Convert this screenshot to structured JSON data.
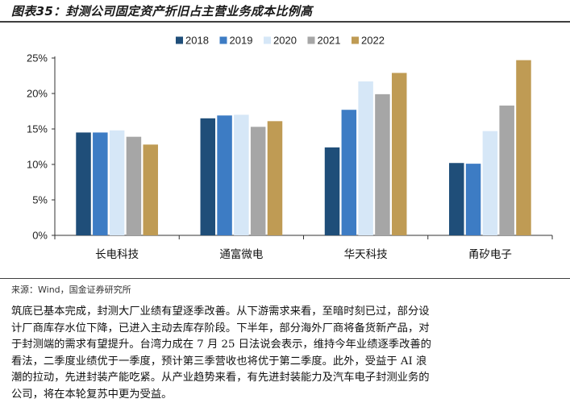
{
  "figure": {
    "title": "图表35：封测公司固定资产折旧占主营业务成本比例高",
    "source": "来源：Wind，国金证券研究所"
  },
  "chart_data": {
    "type": "bar",
    "categories": [
      "长电科技",
      "通富微电",
      "华天科技",
      "甬矽电子"
    ],
    "series": [
      {
        "name": "2018",
        "color": "#1f4e79",
        "values": [
          14.5,
          16.5,
          12.4,
          10.2
        ]
      },
      {
        "name": "2019",
        "color": "#3d7cc4",
        "values": [
          14.5,
          16.9,
          17.7,
          10.1
        ]
      },
      {
        "name": "2020",
        "color": "#d6e7f7",
        "values": [
          14.8,
          17.0,
          21.7,
          14.7
        ]
      },
      {
        "name": "2021",
        "color": "#a6a6a6",
        "values": [
          13.9,
          15.3,
          19.9,
          18.3
        ]
      },
      {
        "name": "2022",
        "color": "#bf9b54",
        "values": [
          12.8,
          16.1,
          22.9,
          24.7
        ]
      }
    ],
    "y_ticks": [
      "0%",
      "5%",
      "10%",
      "15%",
      "20%",
      "25%"
    ],
    "ylim": [
      0,
      25
    ],
    "unit": "%",
    "grid": false,
    "legend_position": "top-right"
  },
  "body_text": [
    "筑底已基本完成，封测大厂业绩有望逐季改善。从下游需求来看，至暗时刻已过，部分设",
    "计厂商库存水位下降，已进入主动去库存阶段。下半年，部分海外厂商将备货新产品，对",
    "于封测端的需求有望提升。台湾力成在 7 月 25 日法说会表示，维持今年业绩逐季改善的",
    "看法，二季度业绩优于一季度，预计第三季营收也将优于第二季度。此外，受益于 AI 浪",
    "潮的拉动，先进封装产能吃紧。从产业趋势来看，有先进封装能力及汽车电子封测业务的",
    "公司，将在本轮复苏中更为受益。"
  ]
}
